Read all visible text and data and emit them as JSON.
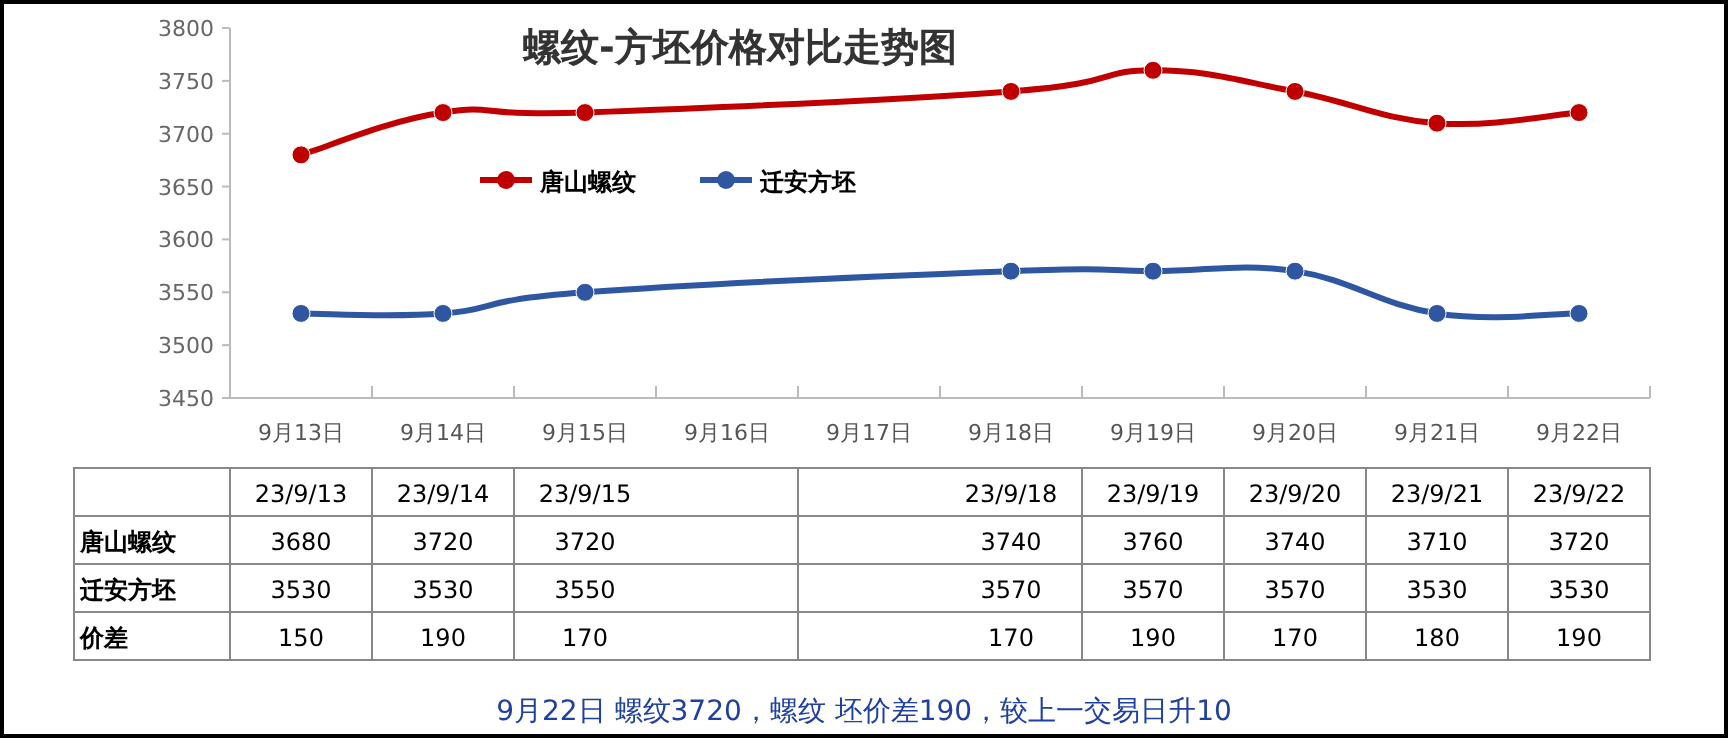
{
  "chart_data": [
    {
      "type": "line",
      "title": "螺纹-方坯价格对比走势图",
      "categories": [
        "9月13日",
        "9月14日",
        "9月15日",
        "9月16日",
        "9月17日",
        "9月18日",
        "9月19日",
        "9月20日",
        "9月21日",
        "9月22日"
      ],
      "series": [
        {
          "name": "唐山螺纹",
          "color": "#c00000",
          "values": [
            3680,
            3720,
            3720,
            null,
            null,
            3740,
            3760,
            3740,
            3710,
            3720
          ],
          "value_labels": [
            "3680",
            "3720",
            "3720",
            null,
            null,
            "3740",
            "3760",
            "3740",
            "3710",
            "3720"
          ]
        },
        {
          "name": "迁安方坯",
          "color": "#2f56a0",
          "values": [
            3530,
            3530,
            3550,
            null,
            null,
            3570,
            3570,
            3570,
            3530,
            3530
          ],
          "value_labels": [
            "3530",
            "3530",
            "3550",
            null,
            null,
            "3570",
            "3570",
            "3570",
            "3530",
            "3530"
          ]
        }
      ],
      "ylim": [
        3450,
        3800
      ],
      "yticks": [
        3450,
        3500,
        3550,
        3600,
        3650,
        3700,
        3750,
        3800
      ],
      "legend": "top",
      "marker": "circle",
      "grid": false
    },
    {
      "type": "other",
      "annotations": [
        "23/9/13",
        "23/9/14",
        "23/9/15",
        "23/9/18",
        "23/9/19",
        "23/9/20",
        "23/9/21",
        "23/9/22",
        "价差",
        "150",
        "190",
        "170",
        "170",
        "190",
        "170",
        "180",
        "190",
        "9月22日 螺纹3720，螺纹 坯价差190，较上一交易日升10"
      ]
    }
  ]
}
